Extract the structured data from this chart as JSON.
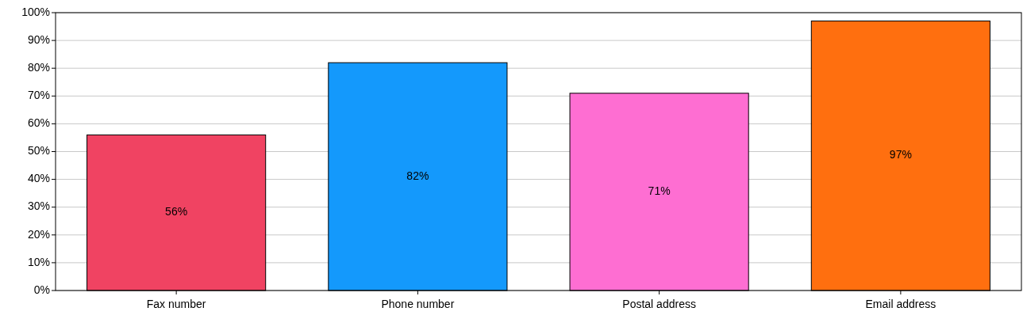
{
  "chart_data": {
    "type": "bar",
    "categories": [
      "Fax number",
      "Phone number",
      "Postal address",
      "Email address"
    ],
    "values": [
      56,
      82,
      71,
      97
    ],
    "colors": [
      "#f04362",
      "#1499fc",
      "#fe6ed2",
      "#ff6f0f"
    ],
    "ylim": [
      0,
      100
    ],
    "yticks": [
      {
        "value": 0,
        "label": "0%"
      },
      {
        "value": 10,
        "label": "10%"
      },
      {
        "value": 20,
        "label": "20%"
      },
      {
        "value": 30,
        "label": "30%"
      },
      {
        "value": 40,
        "label": "40%"
      },
      {
        "value": 50,
        "label": "50%"
      },
      {
        "value": 60,
        "label": "60%"
      },
      {
        "value": 70,
        "label": "70%"
      },
      {
        "value": 80,
        "label": "80%"
      },
      {
        "value": 90,
        "label": "90%"
      },
      {
        "value": 100,
        "label": "100%"
      }
    ],
    "value_labels": [
      "56%",
      "82%",
      "71%",
      "97%"
    ],
    "grid": "y"
  }
}
